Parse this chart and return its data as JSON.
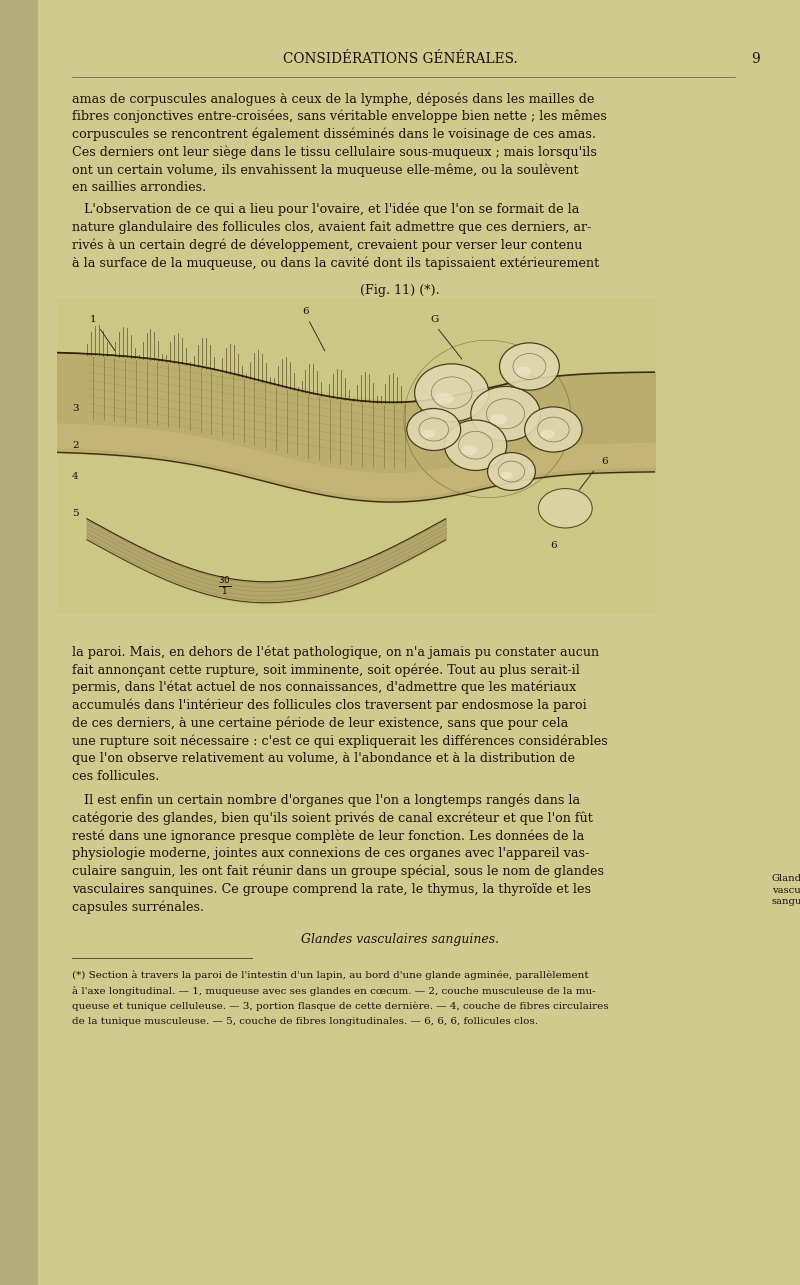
{
  "bg_color": "#d8d19a",
  "page_bg": "#cfc98e",
  "text_area_bg": "#d4cd96",
  "left_strip_color": "#b8b278",
  "header": "CONSIDÉRATIONS GÉNÉRALES.",
  "page_number": "9",
  "lines_para1": [
    "amas de corpuscules analogues à ceux de la lymphe, déposés dans les mailles de",
    "fibres conjonctives entre-croisées, sans véritable enveloppe bien nette ; les mêmes",
    "corpuscules se rencontrent également disséminés dans le voisinage de ces amas.",
    "Ces derniers ont leur siège dans le tissu cellulaire sous-muqueux ; mais lorsqu'ils",
    "ont un certain volume, ils envahissent la muqueuse elle-même, ou la soulèvent",
    "en saillies arrondies."
  ],
  "lines_para2": [
    "   L'observation de ce qui a lieu pour l'ovaire, et l'idée que l'on se formait de la",
    "nature glandulaire des follicules clos, avaient fait admettre que ces derniers, ar-",
    "rivés à un certain degré de développement, crevaient pour verser leur contenu",
    "à la surface de la muqueuse, ou dans la cavité dont ils tapissaient extérieurement"
  ],
  "fig_label": "(Fig. 11) (*).",
  "lines_para3": [
    "la paroi. Mais, en dehors de l'état pathologique, on n'a jamais pu constater aucun",
    "fait annonçant cette rupture, soit imminente, soit opérée. Tout au plus serait-il",
    "permis, dans l'état actuel de nos connaissances, d'admettre que les matériaux",
    "accumulés dans l'intérieur des follicules clos traversent par endosmose la paroi",
    "de ces derniers, à une certaine période de leur existence, sans que pour cela",
    "une rupture soit nécessaire : c'est ce qui expliquerait les différences considérables",
    "que l'on observe relativement au volume, à l'abondance et à la distribution de",
    "ces follicules."
  ],
  "lines_para4": [
    "   Il est enfin un certain nombre d'organes que l'on a longtemps rangés dans la",
    "catégorie des glandes, bien qu'ils soient privés de canal excréteur et que l'on fût",
    "resté dans une ignorance presque complète de leur fonction. Les données de la",
    "physiologie moderne, jointes aux connexions de ces organes avec l'appareil vas-",
    "culaire sanguin, les ont fait réunir dans un groupe spécial, sous le nom de glandes",
    "vasculaires sanquines. Ce groupe comprend la rate, le thymus, la thyroïde et les",
    "capsules surrénales."
  ],
  "sidenote": "Glandes\nvasculaires\nsanguines.",
  "heading2": "Glandes vasculaires sanguines.",
  "footnote_lines": [
    "(*) Section à travers la paroi de l'intestin d'un lapin, au bord d'une glande agminée, parallèlement",
    "à l'axe longitudinal. — 1, muqueuse avec ses glandes en cœcum. — 2, couche musculeuse de la mu-",
    "queuse et tunique celluleuse. — 3, portion flasque de cette dernière. — 4, couche de fibres circulaires",
    "de la tunique musculeuse. — 5, couche de fibres longitudinales. — 6, 6, 6, follicules clos."
  ]
}
